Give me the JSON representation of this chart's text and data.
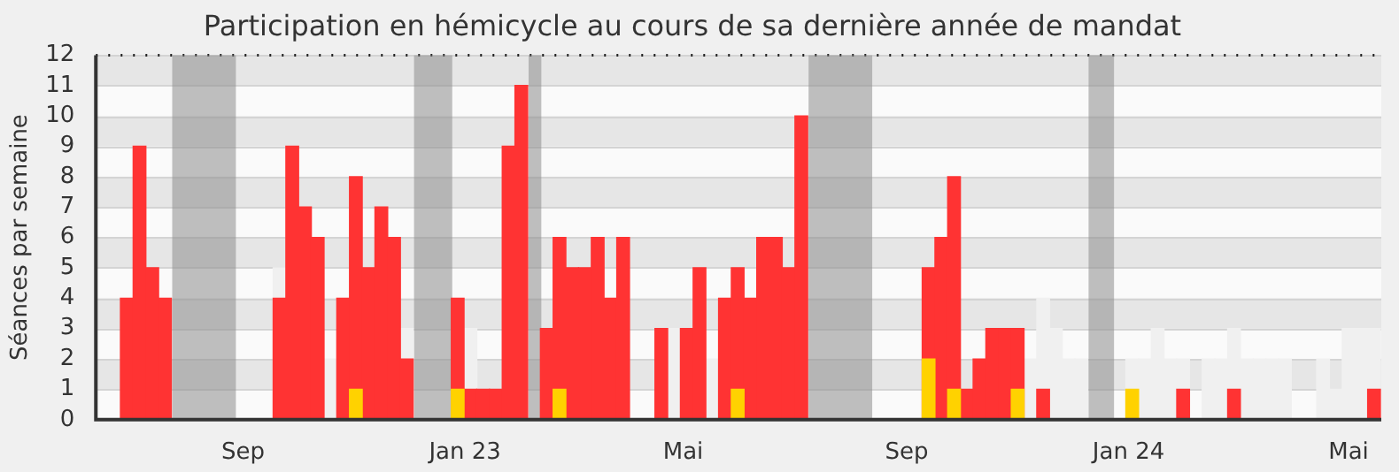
{
  "chart_data": {
    "type": "bar",
    "title": "Participation en hémicycle au cours de sa dernière année de mandat",
    "ylabel": "Séances par semaine",
    "x": [
      "2022-06-15",
      "2022-06-22",
      "2022-06-29",
      "2022-07-06",
      "2022-07-13",
      "2022-07-20",
      "2022-07-27",
      "2022-08-03",
      "2022-08-10",
      "2022-08-17",
      "2022-08-24",
      "2022-08-31",
      "2022-09-07",
      "2022-09-14",
      "2022-09-21",
      "2022-09-28",
      "2022-10-05",
      "2022-10-12",
      "2022-10-19",
      "2022-10-26",
      "2022-11-02",
      "2022-11-09",
      "2022-11-16",
      "2022-11-23",
      "2022-11-30",
      "2022-12-07",
      "2022-12-14",
      "2022-12-21",
      "2022-12-28",
      "2023-01-04",
      "2023-01-11",
      "2023-01-18",
      "2023-01-25",
      "2023-02-01",
      "2023-02-08",
      "2023-02-15",
      "2023-02-22",
      "2023-03-01",
      "2023-03-08",
      "2023-03-15",
      "2023-03-22",
      "2023-03-29",
      "2023-04-05",
      "2023-04-12",
      "2023-04-19",
      "2023-04-26",
      "2023-05-03",
      "2023-05-10",
      "2023-05-17",
      "2023-05-24",
      "2023-05-31",
      "2023-06-07",
      "2023-06-14",
      "2023-06-21",
      "2023-06-28",
      "2023-07-05",
      "2023-07-12",
      "2023-07-19",
      "2023-07-26",
      "2023-08-02",
      "2023-08-09",
      "2023-08-16",
      "2023-08-23",
      "2023-08-30",
      "2023-09-06",
      "2023-09-13",
      "2023-09-20",
      "2023-09-27",
      "2023-10-04",
      "2023-10-11",
      "2023-10-18",
      "2023-10-25",
      "2023-11-01",
      "2023-11-08",
      "2023-11-15",
      "2023-11-22",
      "2023-11-29",
      "2023-12-06",
      "2023-12-13",
      "2023-12-20",
      "2023-12-27",
      "2024-01-03",
      "2024-01-10",
      "2024-01-17",
      "2024-01-24",
      "2024-01-31",
      "2024-02-07",
      "2024-02-14",
      "2024-02-21",
      "2024-02-28",
      "2024-03-06",
      "2024-03-13",
      "2024-03-20",
      "2024-03-27",
      "2024-04-03",
      "2024-04-10",
      "2024-04-17",
      "2024-04-24",
      "2024-05-01",
      "2024-05-08",
      "2024-05-15"
    ],
    "series": [
      {
        "color": "#f0f0f0",
        "values": [
          null,
          null,
          null,
          null,
          null,
          null,
          null,
          null,
          null,
          null,
          null,
          null,
          null,
          null,
          5,
          null,
          null,
          null,
          2,
          null,
          null,
          null,
          null,
          null,
          3,
          null,
          null,
          null,
          null,
          3,
          null,
          null,
          null,
          null,
          null,
          null,
          null,
          null,
          null,
          null,
          null,
          null,
          null,
          null,
          null,
          3,
          null,
          null,
          2,
          null,
          null,
          null,
          null,
          null,
          null,
          null,
          null,
          null,
          null,
          null,
          null,
          null,
          null,
          null,
          null,
          null,
          null,
          null,
          null,
          null,
          null,
          null,
          null,
          2,
          4,
          3,
          2,
          2,
          null,
          null,
          null,
          2,
          2,
          3,
          2,
          2,
          null,
          2,
          2,
          3,
          2,
          2,
          2,
          2,
          null,
          null,
          2,
          1,
          3,
          3,
          3
        ]
      },
      {
        "color": "#ff3333",
        "values": [
          0,
          0,
          4,
          9,
          5,
          4,
          0,
          0,
          0,
          0,
          0,
          0,
          0,
          0,
          4,
          9,
          7,
          6,
          0,
          4,
          8,
          5,
          7,
          6,
          2,
          0,
          0,
          0,
          4,
          1,
          1,
          1,
          9,
          11,
          0,
          3,
          6,
          5,
          5,
          6,
          4,
          6,
          0,
          0,
          3,
          0,
          3,
          5,
          0,
          4,
          5,
          4,
          6,
          6,
          5,
          10,
          0,
          0,
          0,
          0,
          0,
          0,
          0,
          0,
          0,
          5,
          6,
          8,
          1,
          2,
          3,
          3,
          3,
          0,
          1,
          0,
          0,
          0,
          0,
          0,
          0,
          0,
          0,
          0,
          0,
          1,
          0,
          0,
          0,
          1,
          0,
          0,
          0,
          0,
          0,
          0,
          0,
          0,
          0,
          0,
          1
        ]
      },
      {
        "color": "#ffd200",
        "values": [
          0,
          0,
          0,
          0,
          0,
          0,
          0,
          0,
          0,
          0,
          0,
          0,
          0,
          0,
          0,
          0,
          0,
          0,
          0,
          0,
          1,
          0,
          0,
          0,
          0,
          0,
          0,
          0,
          1,
          0,
          0,
          0,
          0,
          0,
          0,
          0,
          1,
          0,
          0,
          0,
          0,
          0,
          0,
          0,
          0,
          0,
          0,
          0,
          0,
          0,
          1,
          0,
          0,
          0,
          0,
          0,
          0,
          0,
          0,
          0,
          0,
          0,
          0,
          0,
          0,
          2,
          0,
          1,
          0,
          0,
          0,
          0,
          1,
          0,
          0,
          0,
          0,
          0,
          0,
          0,
          0,
          1,
          0,
          0,
          0,
          0,
          0,
          0,
          0,
          0,
          0,
          0,
          0,
          0,
          0,
          0,
          0,
          0,
          0,
          0,
          0
        ]
      }
    ],
    "bands": [
      {
        "axis": "x",
        "from": "2022-07-24",
        "to": "2022-08-28",
        "color": "#8c8c8c"
      },
      {
        "axis": "x",
        "from": "2022-12-04",
        "to": "2022-12-25",
        "color": "#8c8c8c"
      },
      {
        "axis": "x",
        "from": "2023-02-05",
        "to": "2023-02-12",
        "color": "#8c8c8c"
      },
      {
        "axis": "x",
        "from": "2023-07-09",
        "to": "2023-08-13",
        "color": "#8c8c8c"
      },
      {
        "axis": "x",
        "from": "2023-12-10",
        "to": "2023-12-24",
        "color": "#8c8c8c"
      }
    ],
    "xlim": [
      "2022-06-12",
      "2024-05-19"
    ],
    "xticks": [
      {
        "value": "2022-09-01",
        "label": "Sep"
      },
      {
        "value": "2023-01-01",
        "label": "Jan 23"
      },
      {
        "value": "2023-05-01",
        "label": "Mai"
      },
      {
        "value": "2023-09-01",
        "label": "Sep"
      },
      {
        "value": "2024-01-01",
        "label": "Jan 24"
      },
      {
        "value": "2024-05-01",
        "label": "Mai"
      }
    ],
    "ylim": [
      0,
      12
    ],
    "yticks": [
      0,
      1,
      2,
      3,
      4,
      5,
      6,
      7,
      8,
      9,
      10,
      11,
      12
    ],
    "grid": "y",
    "legend": false
  }
}
